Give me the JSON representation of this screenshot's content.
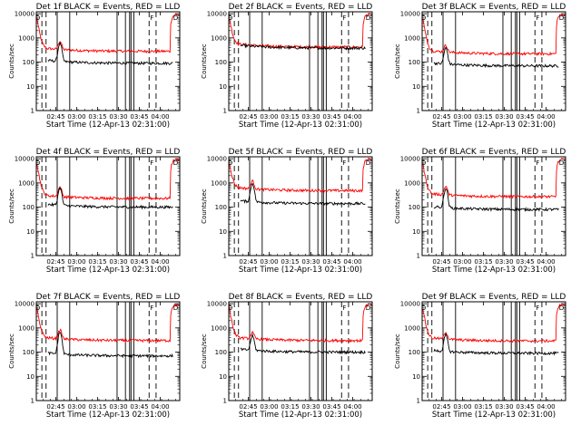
{
  "chart_data": {
    "type": "line",
    "layout": {
      "rows": 3,
      "cols": 3
    },
    "shared": {
      "xlabel": "Start Time (12-Apr-13 02:31:00)",
      "ylabel": "Counts/sec",
      "y_log": true,
      "ylim": [
        1,
        12000
      ],
      "xlim_minutes_after_start": [
        0,
        103
      ],
      "x_tick_labels": [
        "02:45",
        "03:00",
        "03:15",
        "03:30",
        "03:45",
        "04:00"
      ],
      "y_tick_labels": [
        "1",
        "10",
        "100",
        "1000",
        "10000"
      ],
      "series_colors": {
        "events": "#000000",
        "lld": "#ff0000"
      },
      "marker_labels": [
        "D",
        "F",
        "D"
      ],
      "solid_line_times": [
        "02:46",
        "02:55",
        "03:29",
        "03:35",
        "03:38",
        "03:39",
        "03:41"
      ],
      "dashed_line_times": [
        "02:35",
        "02:38",
        "03:52",
        "03:57"
      ]
    },
    "panels": [
      {
        "title": "Det 1f BLACK = Events, RED = LLD",
        "events_level": 90,
        "lld_level": 280,
        "spike": 500
      },
      {
        "title": "Det 2f BLACK = Events, RED = LLD",
        "events_level": 380,
        "lld_level": 420,
        "spike": 0
      },
      {
        "title": "Det 3f BLACK = Events, RED = LLD",
        "events_level": 70,
        "lld_level": 220,
        "spike": 300
      },
      {
        "title": "Det 4f BLACK = Events, RED = LLD",
        "events_level": 100,
        "lld_level": 230,
        "spike": 500
      },
      {
        "title": "Det 5f BLACK = Events, RED = LLD",
        "events_level": 140,
        "lld_level": 480,
        "spike": 800
      },
      {
        "title": "Det 6f BLACK = Events, RED = LLD",
        "events_level": 80,
        "lld_level": 270,
        "spike": 500
      },
      {
        "title": "Det 7f BLACK = Events, RED = LLD",
        "events_level": 70,
        "lld_level": 300,
        "spike": 600
      },
      {
        "title": "Det 8f BLACK = Events, RED = LLD",
        "events_level": 100,
        "lld_level": 300,
        "spike": 350
      },
      {
        "title": "Det 9f BLACK = Events, RED = LLD",
        "events_level": 90,
        "lld_level": 290,
        "spike": 400
      }
    ]
  }
}
